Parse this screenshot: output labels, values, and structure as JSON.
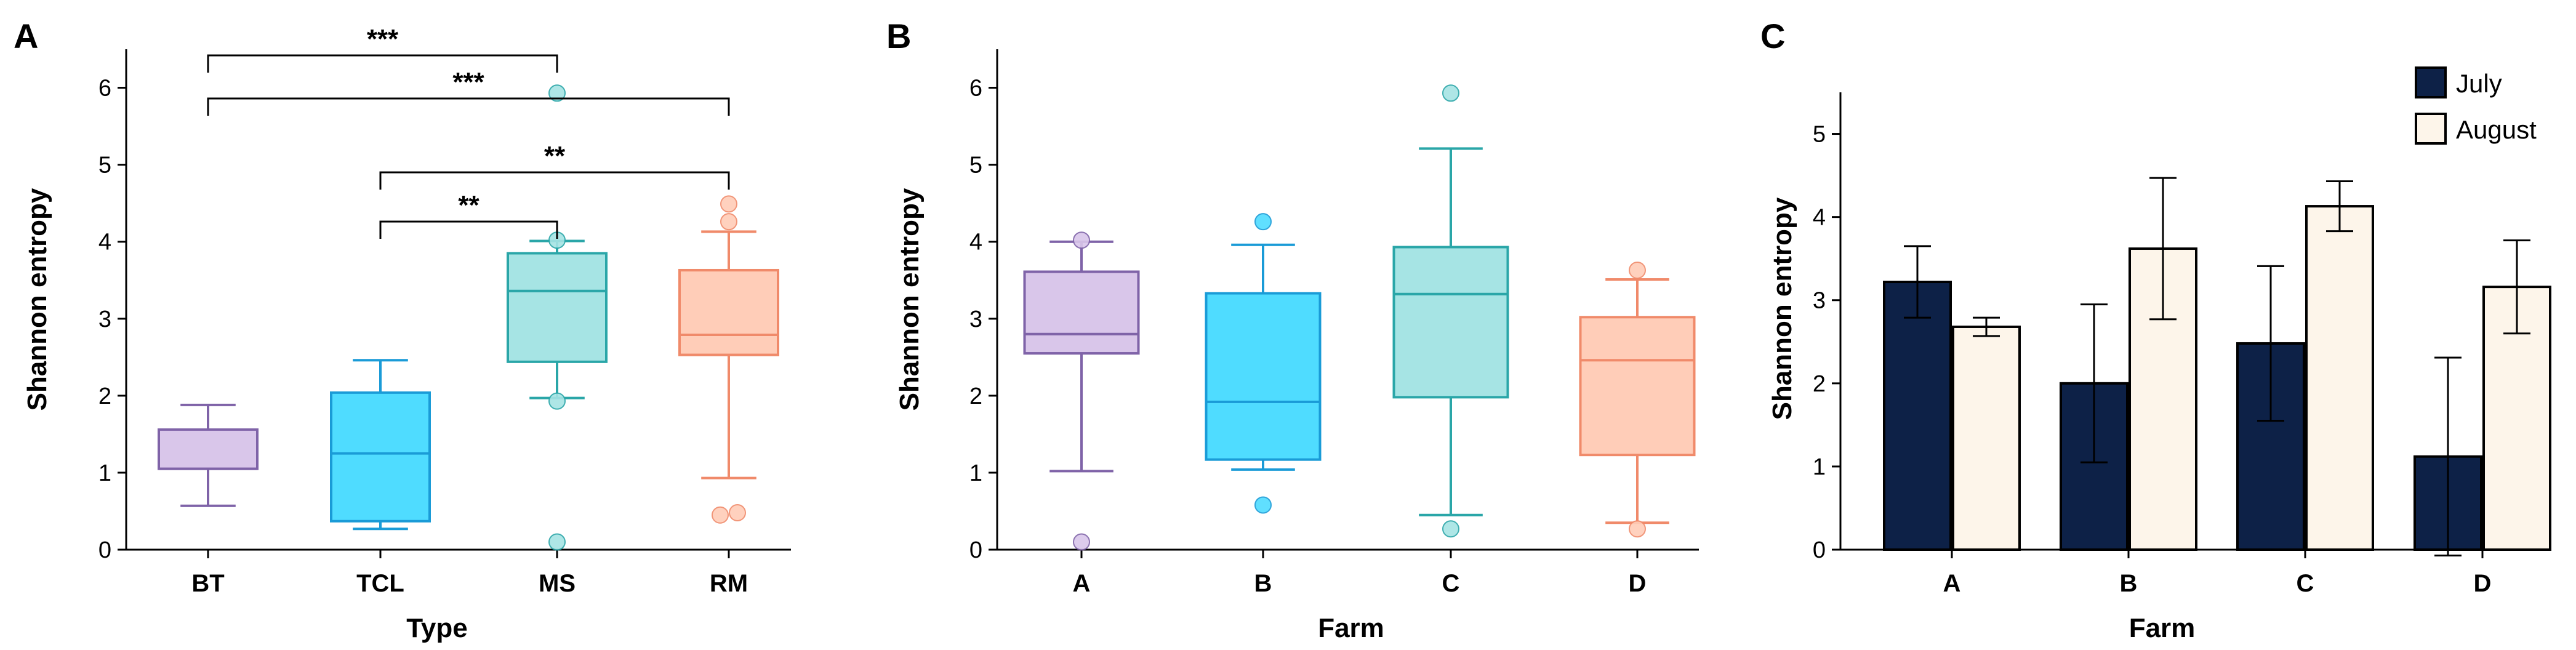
{
  "chart_data": [
    {
      "panel": "A",
      "type": "box",
      "xlabel": "Type",
      "ylabel": "Shannon entropy",
      "ylim": [
        0,
        6.5
      ],
      "yticks": [
        "0",
        "1",
        "2",
        "3",
        "4",
        "5",
        "6"
      ],
      "categories": [
        "BT",
        "TCL",
        "MS",
        "RM"
      ],
      "boxes": [
        {
          "name": "BT",
          "q1": 1.05,
          "median": 1.05,
          "q3": 1.56,
          "whisker_low": 0.57,
          "whisker_high": 1.88,
          "outliers": [],
          "fill": "#d9c6ea",
          "stroke": "#7f63a8"
        },
        {
          "name": "TCL",
          "q1": 0.37,
          "median": 1.25,
          "q3": 2.04,
          "whisker_low": 0.27,
          "whisker_high": 2.46,
          "outliers": [],
          "fill": "#4fdcff",
          "stroke": "#1a9bd7"
        },
        {
          "name": "MS",
          "q1": 2.44,
          "median": 3.36,
          "q3": 3.85,
          "whisker_low": 1.97,
          "whisker_high": 4.01,
          "outliers": [
            5.93,
            4.02,
            1.93,
            0.1
          ],
          "fill": "#a6e4e4",
          "stroke": "#2aa6a8"
        },
        {
          "name": "RM",
          "q1": 2.53,
          "median": 2.79,
          "q3": 3.63,
          "whisker_low": 0.93,
          "whisker_high": 4.13,
          "outliers": [
            4.49,
            4.26,
            0.45,
            0.48
          ],
          "fill": "#ffcdb8",
          "stroke": "#f08a6a"
        }
      ],
      "significance": [
        {
          "from": "BT",
          "to": "MS",
          "label": "***"
        },
        {
          "from": "BT",
          "to": "RM",
          "label": "***"
        },
        {
          "from": "TCL",
          "to": "RM",
          "label": "**"
        },
        {
          "from": "TCL",
          "to": "MS",
          "label": "**"
        }
      ]
    },
    {
      "panel": "B",
      "type": "box",
      "xlabel": "Farm",
      "ylabel": "Shannon entropy",
      "ylim": [
        0,
        6.5
      ],
      "yticks": [
        "0",
        "1",
        "2",
        "3",
        "4",
        "5",
        "6"
      ],
      "categories": [
        "A",
        "B",
        "C",
        "D"
      ],
      "boxes": [
        {
          "name": "A",
          "q1": 2.55,
          "median": 2.8,
          "q3": 3.61,
          "whisker_low": 1.02,
          "whisker_high": 4.0,
          "outliers": [
            4.02,
            0.1
          ],
          "fill": "#d9c6ea",
          "stroke": "#7f63a8"
        },
        {
          "name": "B",
          "q1": 1.17,
          "median": 1.92,
          "q3": 3.33,
          "whisker_low": 1.04,
          "whisker_high": 3.96,
          "outliers": [
            4.26,
            0.58
          ],
          "fill": "#4fdcff",
          "stroke": "#1a9bd7"
        },
        {
          "name": "C",
          "q1": 1.98,
          "median": 3.32,
          "q3": 3.93,
          "whisker_low": 0.45,
          "whisker_high": 5.21,
          "outliers": [
            5.93,
            0.27
          ],
          "fill": "#a6e4e4",
          "stroke": "#2aa6a8"
        },
        {
          "name": "D",
          "q1": 1.23,
          "median": 2.46,
          "q3": 3.02,
          "whisker_low": 0.35,
          "whisker_high": 3.51,
          "outliers": [
            3.63,
            0.27
          ],
          "fill": "#ffcdb8",
          "stroke": "#f08a6a"
        }
      ]
    },
    {
      "panel": "C",
      "type": "bar",
      "xlabel": "Farm",
      "ylabel": "Shannon entropy",
      "ylim": [
        0,
        5.5
      ],
      "yticks": [
        "0",
        "1",
        "2",
        "3",
        "4",
        "5"
      ],
      "categories": [
        "A",
        "B",
        "C",
        "D"
      ],
      "series": [
        {
          "name": "July",
          "values": [
            3.22,
            2.0,
            2.48,
            1.12
          ],
          "errors": [
            0.43,
            0.95,
            0.93,
            1.19
          ],
          "fill": "#0d2147",
          "stroke": "#000000"
        },
        {
          "name": "August",
          "values": [
            2.68,
            3.62,
            4.13,
            3.16
          ],
          "errors": [
            0.11,
            0.85,
            0.3,
            0.56
          ],
          "fill": "#fdf5ea",
          "stroke": "#000000"
        }
      ],
      "legend": "top-right"
    }
  ]
}
